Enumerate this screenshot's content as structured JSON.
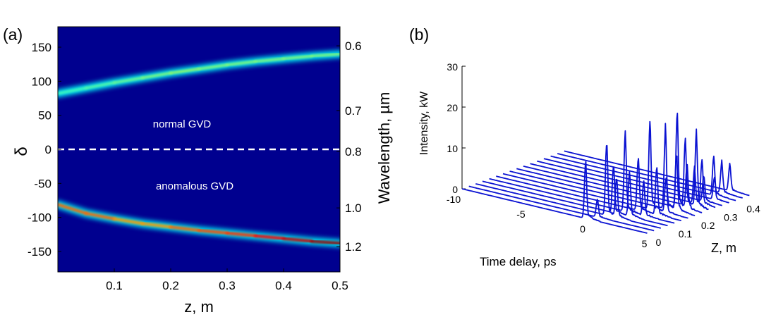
{
  "chart_data": [
    {
      "panel_label": "(a)",
      "type": "heatmap",
      "xlabel": "z, m",
      "ylabel": "δ",
      "ylabel_right": "Wavelength, µm",
      "xlim": [
        0,
        0.5
      ],
      "ylim": [
        -180,
        180
      ],
      "x_ticks": [
        0.1,
        0.2,
        0.3,
        0.4,
        0.5
      ],
      "y_ticks": [
        150,
        100,
        50,
        0,
        -50,
        -100,
        -150
      ],
      "y2_ticks": [
        {
          "label": "0.6",
          "delta": 152
        },
        {
          "label": "0.7",
          "delta": 57
        },
        {
          "label": "0.8",
          "delta": -3
        },
        {
          "label": "1.0",
          "delta": -86
        },
        {
          "label": "1.2",
          "delta": -143
        }
      ],
      "annotations": [
        "normal GVD",
        "anomalous GVD"
      ],
      "zero_line": {
        "delta": 0,
        "style": "dashed"
      },
      "colors": {
        "background": "#00008f",
        "line": "#ffffff"
      },
      "series": [
        {
          "name": "upper branch",
          "z": [
            0.0,
            0.05,
            0.1,
            0.15,
            0.2,
            0.25,
            0.3,
            0.35,
            0.4,
            0.45,
            0.5
          ],
          "delta": [
            82,
            90,
            98,
            105,
            112,
            118,
            124,
            129,
            133,
            137,
            140
          ],
          "intensity": [
            0.45,
            0.45,
            0.5,
            0.5,
            0.55,
            0.55,
            0.5,
            0.55,
            0.5,
            0.55,
            0.5
          ]
        },
        {
          "name": "lower branch",
          "z": [
            0.0,
            0.05,
            0.1,
            0.15,
            0.2,
            0.25,
            0.3,
            0.35,
            0.4,
            0.45,
            0.5
          ],
          "delta": [
            -81,
            -94,
            -102,
            -109,
            -114,
            -119,
            -123,
            -127,
            -131,
            -135,
            -138
          ],
          "intensity": [
            0.75,
            0.8,
            0.75,
            0.7,
            0.75,
            0.8,
            0.8,
            0.85,
            0.9,
            0.95,
            1.0
          ]
        }
      ]
    },
    {
      "panel_label": "(b)",
      "type": "line",
      "subtype": "waterfall-3d",
      "xlabel": "Time delay, ps",
      "ylabel": "Z, m",
      "zlabel": "Intensity, kW",
      "xlim": [
        -10,
        5
      ],
      "ylim": [
        0,
        0.45
      ],
      "zlim": [
        0,
        30
      ],
      "x_ticks": [
        -10,
        -5,
        0,
        5
      ],
      "y_ticks": [
        0,
        0.1,
        0.2,
        0.3,
        0.4
      ],
      "z_ticks": [
        0,
        10,
        20,
        30
      ],
      "color": "#0a12d2",
      "series_z": [
        0.0,
        0.03,
        0.06,
        0.09,
        0.12,
        0.15,
        0.18,
        0.21,
        0.24,
        0.27,
        0.3,
        0.33,
        0.36,
        0.39,
        0.42,
        0.45
      ],
      "peaks": [
        [
          [
            0.0,
            13
          ]
        ],
        [
          [
            0.4,
            4
          ]
        ],
        [
          [
            0.6,
            17
          ],
          [
            1.4,
            9
          ]
        ],
        [
          [
            0.6,
            11
          ],
          [
            1.9,
            10
          ]
        ],
        [
          [
            1.0,
            18
          ],
          [
            2.5,
            8
          ]
        ],
        [
          [
            1.5,
            12
          ],
          [
            3.0,
            11
          ]
        ],
        [
          [
            1.9,
            20
          ],
          [
            3.2,
            8
          ]
        ],
        [
          [
            2.6,
            18
          ],
          [
            3.5,
            13
          ]
        ],
        [
          [
            3.0,
            22
          ],
          [
            3.8,
            10
          ]
        ],
        [
          [
            3.1,
            15
          ],
          [
            4.0,
            17
          ]
        ],
        [
          [
            3.3,
            8
          ],
          [
            3.9,
            10
          ]
        ],
        [
          [
            3.5,
            6
          ]
        ],
        [
          [
            3.8,
            5
          ]
        ],
        [
          [
            3.2,
            9
          ]
        ],
        [
          [
            3.3,
            7
          ]
        ],
        [
          [
            3.4,
            6
          ]
        ]
      ]
    }
  ]
}
